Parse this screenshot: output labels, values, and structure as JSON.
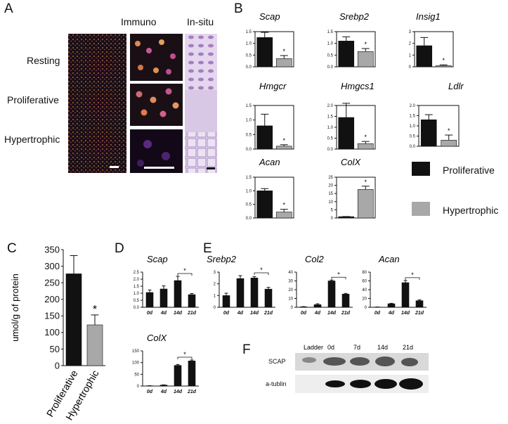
{
  "panel_letters": {
    "a": "A",
    "b": "B",
    "c": "C",
    "d": "D",
    "e": "E",
    "f": "F"
  },
  "panel_a": {
    "column_labels": [
      "Immuno",
      "In-situ"
    ],
    "row_labels": [
      "Resting",
      "Proliferative",
      "Hypertrophic"
    ]
  },
  "panel_b_legend": [
    "Proliferative",
    "Hypertrophic"
  ],
  "panel_f": {
    "lane_labels": [
      "Ladder",
      "0d",
      "7d",
      "14d",
      "21d"
    ],
    "row_labels": [
      "SCAP",
      "a-tublin"
    ]
  },
  "colors": {
    "proliferative": "#111111",
    "hypertrophic": "#a8a8a8",
    "immuno_bg": "#1a0f14",
    "insitu_bg": "#d8c8e6"
  },
  "chart_data": [
    {
      "id": "scap_b",
      "type": "bar",
      "title": "Scap",
      "categories": [
        "Proliferative",
        "Hypertrophic"
      ],
      "values": [
        1.25,
        0.35
      ],
      "errors": [
        0.22,
        0.13
      ],
      "ylim": [
        0,
        1.5
      ],
      "yticks": [
        "0.0",
        "0.5",
        "1.0",
        "1.5"
      ],
      "significance": "*"
    },
    {
      "id": "srebp2_b",
      "type": "bar",
      "title": "Srebp2",
      "categories": [
        "Proliferative",
        "Hypertrophic"
      ],
      "values": [
        1.1,
        0.65
      ],
      "errors": [
        0.18,
        0.13
      ],
      "ylim": [
        0,
        1.5
      ],
      "yticks": [
        "0.0",
        "0.5",
        "1.0",
        "1.5"
      ],
      "significance": "*"
    },
    {
      "id": "insig1_b",
      "type": "bar",
      "title": "Insig1",
      "categories": [
        "Proliferative",
        "Hypertrophic"
      ],
      "values": [
        1.8,
        0.1
      ],
      "errors": [
        0.7,
        0.07
      ],
      "ylim": [
        0,
        3
      ],
      "yticks": [
        "0",
        "1",
        "2",
        "3"
      ],
      "significance": "*"
    },
    {
      "id": "hmgcr_b",
      "type": "bar",
      "title": "Hmgcr",
      "categories": [
        "Proliferative",
        "Hypertrophic"
      ],
      "values": [
        0.8,
        0.1
      ],
      "errors": [
        0.4,
        0.05
      ],
      "ylim": [
        0,
        1.5
      ],
      "yticks": [
        "0.0",
        "0.5",
        "1.0",
        "1.5"
      ],
      "significance": "*"
    },
    {
      "id": "hmgcs1_b",
      "type": "bar",
      "title": "Hmgcs1",
      "categories": [
        "Proliferative",
        "Hypertrophic"
      ],
      "values": [
        1.45,
        0.25
      ],
      "errors": [
        0.65,
        0.1
      ],
      "ylim": [
        0,
        2.0
      ],
      "yticks": [
        "0.0",
        "0.5",
        "1.0",
        "1.5",
        "2.0"
      ],
      "significance": "*"
    },
    {
      "id": "ldlr_b",
      "type": "bar",
      "title": "Ldlr",
      "categories": [
        "Proliferative",
        "Hypertrophic"
      ],
      "values": [
        1.3,
        0.3
      ],
      "errors": [
        0.25,
        0.25
      ],
      "ylim": [
        0,
        2.0
      ],
      "yticks": [
        "0.0",
        "0.5",
        "1.0",
        "1.5",
        "2.0"
      ],
      "significance": "*"
    },
    {
      "id": "acan_b",
      "type": "bar",
      "title": "Acan",
      "categories": [
        "Proliferative",
        "Hypertrophic"
      ],
      "values": [
        1.0,
        0.22
      ],
      "errors": [
        0.08,
        0.1
      ],
      "ylim": [
        0,
        1.5
      ],
      "yticks": [
        "0.0",
        "0.5",
        "1.0",
        "1.5"
      ],
      "significance": "*"
    },
    {
      "id": "colx_b",
      "type": "bar",
      "title": "ColX",
      "categories": [
        "Proliferative",
        "Hypertrophic"
      ],
      "values": [
        0.8,
        17.5
      ],
      "errors": [
        0.1,
        2.0
      ],
      "ylim": [
        0,
        25
      ],
      "yticks": [
        "0",
        "5",
        "10",
        "15",
        "20",
        "25"
      ],
      "significance": "*"
    },
    {
      "id": "cholesterol_c",
      "type": "bar",
      "title": "",
      "ylabel": "umol/g of protein",
      "categories": [
        "Proliferative",
        "Hypertrophic"
      ],
      "values": [
        277,
        123
      ],
      "errors": [
        55,
        30
      ],
      "ylim": [
        0,
        350
      ],
      "yticks": [
        "0",
        "50",
        "100",
        "150",
        "200",
        "250",
        "300",
        "350"
      ],
      "significance": "*"
    },
    {
      "id": "scap_d",
      "type": "bar",
      "title": "Scap",
      "categories": [
        "0d",
        "4d",
        "14d",
        "21d"
      ],
      "values": [
        1.05,
        1.3,
        1.9,
        0.9
      ],
      "errors": [
        0.18,
        0.22,
        0.3,
        0.08
      ],
      "ylim": [
        0,
        2.5
      ],
      "yticks": [
        "0.0",
        "0.5",
        "1.0",
        "1.5",
        "2.0",
        "2.5"
      ],
      "bracket": [
        2,
        3
      ],
      "significance": "*"
    },
    {
      "id": "colx_d",
      "type": "bar",
      "title": "ColX",
      "categories": [
        "0d",
        "4d",
        "14d",
        "21d"
      ],
      "values": [
        1,
        4,
        88,
        107
      ],
      "errors": [
        0.5,
        1,
        4,
        4
      ],
      "ylim": [
        0,
        150
      ],
      "yticks": [
        "0",
        "50",
        "100",
        "150"
      ],
      "bracket": [
        2,
        3
      ],
      "significance": "*"
    },
    {
      "id": "srebp2_e",
      "type": "bar",
      "title": "Srebp2",
      "categories": [
        "0d",
        "4d",
        "14d",
        "21d"
      ],
      "values": [
        1.0,
        2.45,
        2.5,
        1.55
      ],
      "errors": [
        0.2,
        0.25,
        0.12,
        0.15
      ],
      "ylim": [
        0,
        3
      ],
      "yticks": [
        "0",
        "1",
        "2",
        "3"
      ],
      "bracket": [
        2,
        3
      ],
      "significance": "*"
    },
    {
      "id": "col2_e",
      "type": "bar",
      "title": "Col2",
      "categories": [
        "0d",
        "4d",
        "14d",
        "21d"
      ],
      "values": [
        0.5,
        3,
        30,
        15
      ],
      "errors": [
        0.3,
        1,
        1,
        0.8
      ],
      "ylim": [
        0,
        40
      ],
      "yticks": [
        "0",
        "10",
        "20",
        "30",
        "40"
      ],
      "bracket": [
        2,
        3
      ],
      "significance": "*"
    },
    {
      "id": "acan_e",
      "type": "bar",
      "title": "Acan",
      "categories": [
        "0d",
        "4d",
        "14d",
        "21d"
      ],
      "values": [
        0.5,
        8,
        56,
        15
      ],
      "errors": [
        0.3,
        1,
        5,
        2
      ],
      "ylim": [
        0,
        80
      ],
      "yticks": [
        "0",
        "20",
        "40",
        "60",
        "80"
      ],
      "bracket": [
        2,
        3
      ],
      "significance": "*"
    }
  ]
}
